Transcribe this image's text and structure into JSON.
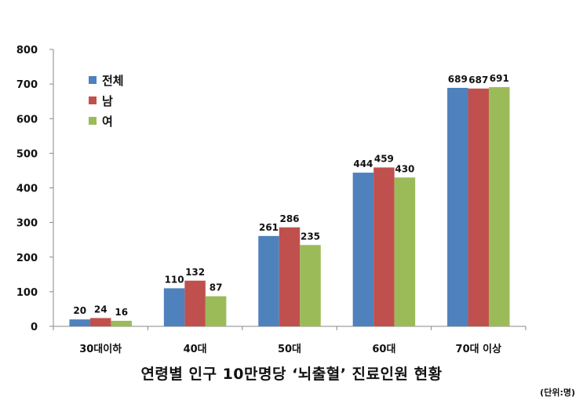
{
  "chart_data": {
    "type": "bar",
    "title": "연령별 인구 10만명당 ‘뇌출혈’ 진료인원 현황",
    "unit_note": "(단위:명)",
    "categories": [
      "30대이하",
      "40대",
      "50대",
      "60대",
      "70대 이상"
    ],
    "series": [
      {
        "name": "전체",
        "color": "#4F81BD",
        "values": [
          20,
          110,
          261,
          444,
          689
        ]
      },
      {
        "name": "남",
        "color": "#C0504D",
        "values": [
          24,
          132,
          286,
          459,
          687
        ]
      },
      {
        "name": "여",
        "color": "#9BBB59",
        "values": [
          16,
          87,
          235,
          430,
          691
        ]
      }
    ],
    "ylim": [
      0,
      800
    ],
    "yticks": [
      0,
      100,
      200,
      300,
      400,
      500,
      600,
      700,
      800
    ],
    "grid": false,
    "legend_position": "top-left"
  }
}
